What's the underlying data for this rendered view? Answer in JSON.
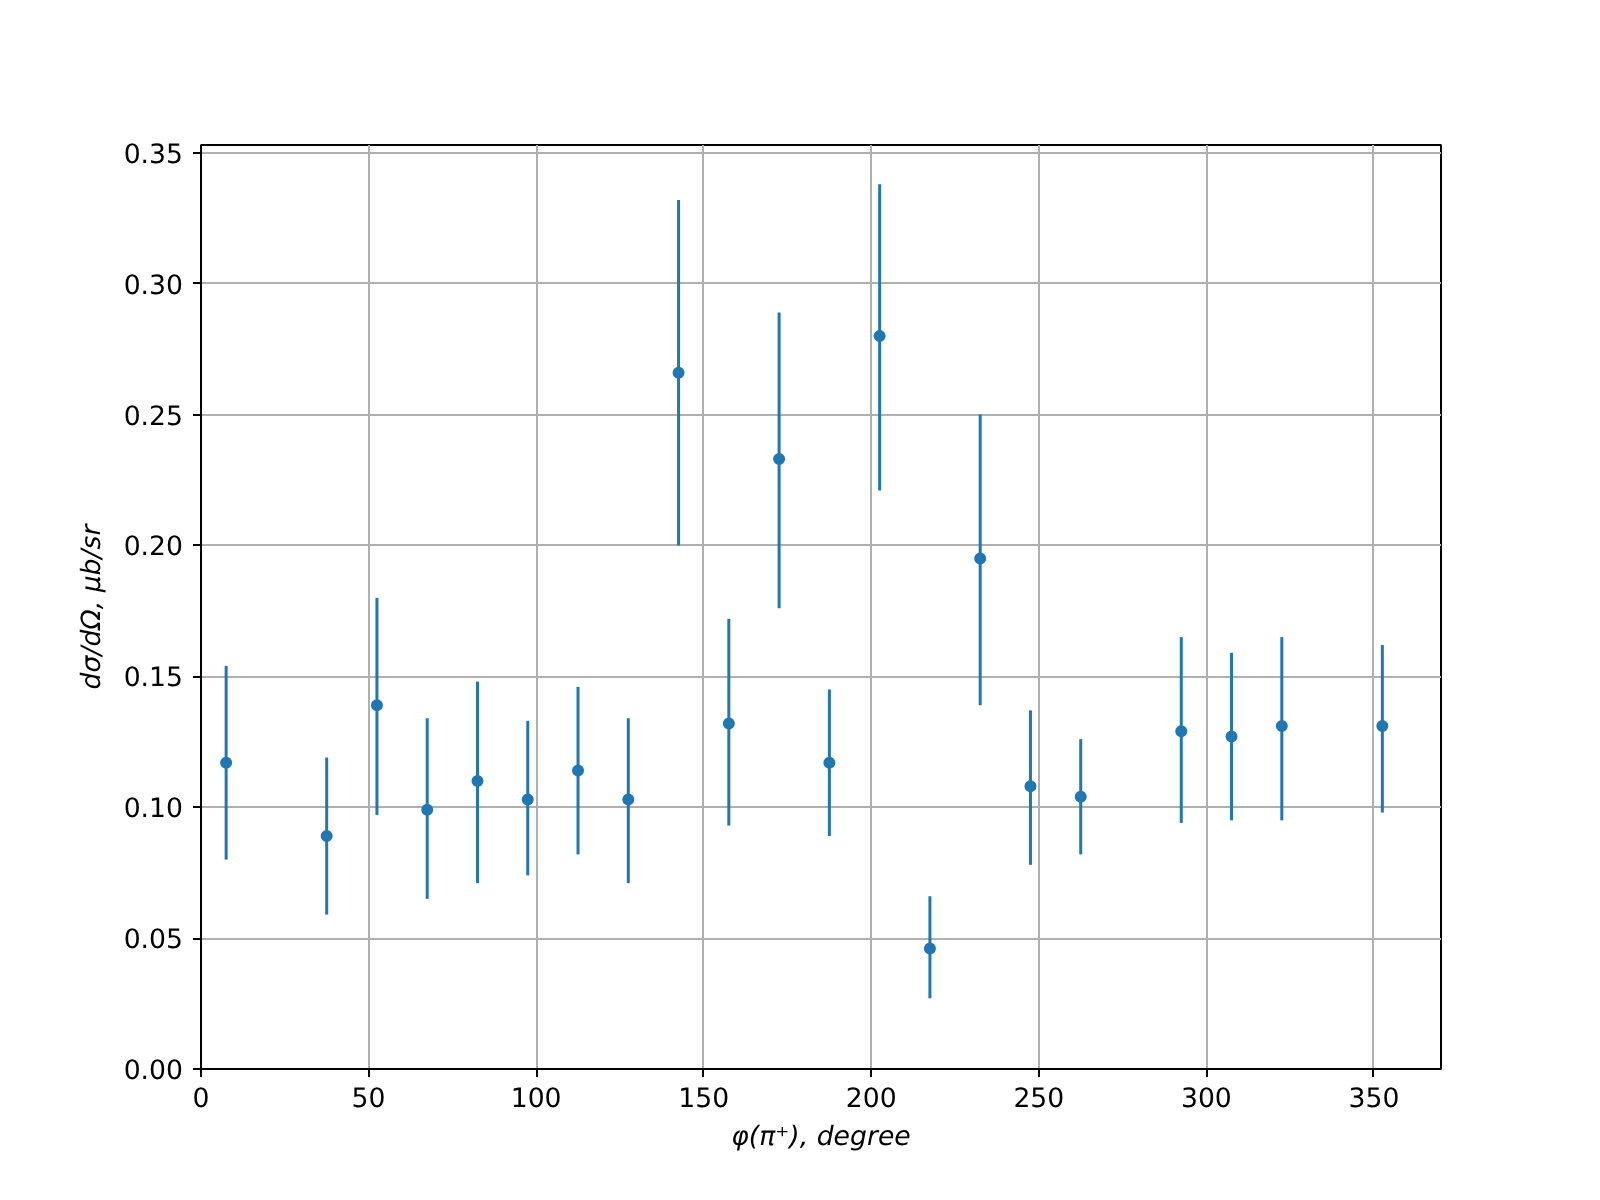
{
  "chart_data": {
    "type": "scatter",
    "xlabel": "φ(π⁺), degree",
    "ylabel": "dσ/dΩ, μb/sr",
    "x": [
      7.5,
      37.5,
      52.5,
      67.5,
      82.5,
      97.5,
      112.5,
      127.5,
      142.5,
      157.5,
      172.5,
      187.5,
      202.5,
      217.5,
      232.5,
      247.5,
      262.5,
      292.5,
      307.5,
      322.5,
      352.5
    ],
    "series": [
      {
        "color": "#1f77b4",
        "values": [
          0.117,
          0.089,
          0.139,
          0.099,
          0.11,
          0.103,
          0.114,
          0.103,
          0.266,
          0.132,
          0.233,
          0.117,
          0.28,
          0.046,
          0.195,
          0.108,
          0.104,
          0.129,
          0.127,
          0.131,
          0.131
        ],
        "errors": [
          [
            0.08,
            0.154
          ],
          [
            0.059,
            0.119
          ],
          [
            0.097,
            0.18
          ],
          [
            0.065,
            0.134
          ],
          [
            0.071,
            0.148
          ],
          [
            0.074,
            0.133
          ],
          [
            0.082,
            0.146
          ],
          [
            0.071,
            0.134
          ],
          [
            0.2,
            0.332
          ],
          [
            0.093,
            0.172
          ],
          [
            0.176,
            0.289
          ],
          [
            0.089,
            0.145
          ],
          [
            0.221,
            0.338
          ],
          [
            0.027,
            0.066
          ],
          [
            0.139,
            0.25
          ],
          [
            0.078,
            0.137
          ],
          [
            0.082,
            0.126
          ],
          [
            0.094,
            0.165
          ],
          [
            0.095,
            0.159
          ],
          [
            0.095,
            0.165
          ],
          [
            0.098,
            0.162
          ]
        ]
      }
    ],
    "xlim": [
      0,
      370
    ],
    "ylim": [
      0,
      0.353
    ],
    "xticks": [
      0,
      50,
      100,
      150,
      200,
      250,
      300,
      350
    ],
    "yticks": [
      {
        "value": 0,
        "label": "0.00"
      },
      {
        "value": 0.05,
        "label": "0.05"
      },
      {
        "value": 0.1,
        "label": "0.10"
      },
      {
        "value": 0.15,
        "label": "0.15"
      },
      {
        "value": 0.2,
        "label": "0.20"
      },
      {
        "value": 0.25,
        "label": "0.25"
      },
      {
        "value": 0.3,
        "label": "0.30"
      },
      {
        "value": 0.35,
        "label": "0.35"
      }
    ],
    "grid": true,
    "marker": "circle"
  }
}
